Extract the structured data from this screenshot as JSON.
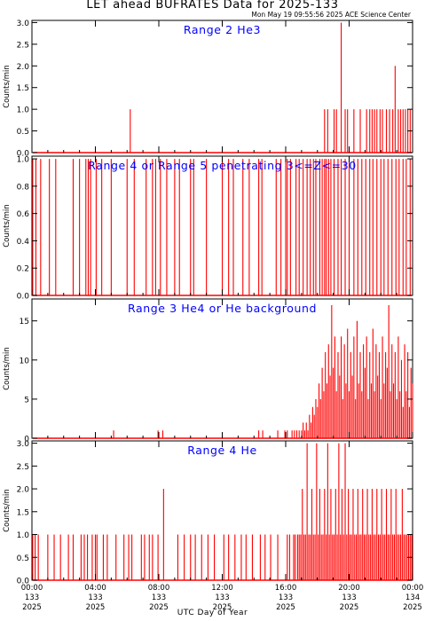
{
  "header": {
    "title": "LET ahead BUFRATES Data for 2025-133",
    "timestamp": "Mon May 19 09:55:56 2025 ACE Science Center"
  },
  "colors": {
    "data": "#ff0000",
    "panel_title": "#0000ff",
    "axis": "#000000"
  },
  "chart_data": [
    {
      "type": "line",
      "title": "Range 2 He3",
      "ylabel": "Counts/min",
      "ylim": [
        0,
        3.05
      ],
      "yticks": [
        "0.0",
        "0.5",
        "1.0",
        "1.5",
        "2.0",
        "2.5",
        "3.0"
      ],
      "yticks_values": [
        0,
        0.5,
        1,
        1.5,
        2,
        2.5,
        3
      ],
      "x_unit": "hours",
      "points": [
        [
          6.2,
          1
        ],
        [
          18.45,
          1
        ],
        [
          18.65,
          1
        ],
        [
          19.05,
          1
        ],
        [
          19.2,
          1
        ],
        [
          19.5,
          3
        ],
        [
          19.75,
          1
        ],
        [
          19.9,
          1
        ],
        [
          20.3,
          1
        ],
        [
          20.7,
          1
        ],
        [
          21.1,
          1
        ],
        [
          21.3,
          1
        ],
        [
          21.45,
          1
        ],
        [
          21.6,
          1
        ],
        [
          21.75,
          1
        ],
        [
          21.95,
          1
        ],
        [
          22.1,
          1
        ],
        [
          22.35,
          1
        ],
        [
          22.55,
          1
        ],
        [
          22.75,
          1
        ],
        [
          22.9,
          2
        ],
        [
          23.1,
          1
        ],
        [
          23.25,
          1
        ],
        [
          23.4,
          1
        ],
        [
          23.55,
          1
        ],
        [
          23.7,
          1
        ],
        [
          23.85,
          1
        ]
      ]
    },
    {
      "type": "line",
      "title": "Range 4 or Range 5 penetrating 3<=Z<=30",
      "ylabel": "Counts/min",
      "ylim": [
        0,
        1.02
      ],
      "yticks": [
        "0.0",
        "0.2",
        "0.4",
        "0.6",
        "0.8",
        "1.0"
      ],
      "yticks_values": [
        0,
        0.2,
        0.4,
        0.6,
        0.8,
        1.0
      ],
      "x_unit": "hours",
      "points": [
        [
          0.05,
          1
        ],
        [
          0.25,
          1
        ],
        [
          0.55,
          1
        ],
        [
          1.1,
          1
        ],
        [
          1.5,
          1
        ],
        [
          2.6,
          1
        ],
        [
          3.0,
          1
        ],
        [
          3.4,
          1
        ],
        [
          3.55,
          1
        ],
        [
          3.7,
          1
        ],
        [
          4.05,
          1
        ],
        [
          4.4,
          1
        ],
        [
          5.0,
          1
        ],
        [
          6.0,
          1
        ],
        [
          6.45,
          1
        ],
        [
          7.2,
          1
        ],
        [
          7.6,
          1
        ],
        [
          7.8,
          1
        ],
        [
          8.1,
          1
        ],
        [
          8.5,
          1
        ],
        [
          9.0,
          1
        ],
        [
          9.3,
          1
        ],
        [
          10.0,
          1
        ],
        [
          10.2,
          1
        ],
        [
          11.0,
          1
        ],
        [
          12.0,
          1
        ],
        [
          12.4,
          1
        ],
        [
          12.7,
          1
        ],
        [
          13.3,
          1
        ],
        [
          13.7,
          1
        ],
        [
          14.3,
          1
        ],
        [
          14.5,
          1
        ],
        [
          15.4,
          1
        ],
        [
          15.7,
          1
        ],
        [
          16.0,
          1
        ],
        [
          16.1,
          1
        ],
        [
          16.3,
          1
        ],
        [
          16.65,
          1
        ],
        [
          16.85,
          1
        ],
        [
          17.1,
          1
        ],
        [
          17.35,
          1
        ],
        [
          17.55,
          1
        ],
        [
          17.75,
          1
        ],
        [
          17.9,
          1
        ],
        [
          18.15,
          1
        ],
        [
          18.3,
          1
        ],
        [
          18.45,
          1
        ],
        [
          18.55,
          1
        ],
        [
          18.7,
          1
        ],
        [
          18.85,
          1
        ],
        [
          19.05,
          1
        ],
        [
          19.3,
          1
        ],
        [
          19.5,
          1
        ],
        [
          19.75,
          1
        ],
        [
          20.0,
          1
        ],
        [
          20.3,
          1
        ],
        [
          20.55,
          1
        ],
        [
          20.8,
          1
        ],
        [
          21.05,
          1
        ],
        [
          21.3,
          1
        ],
        [
          21.5,
          1
        ],
        [
          21.75,
          1
        ],
        [
          22.0,
          1
        ],
        [
          22.2,
          1
        ],
        [
          22.45,
          1
        ],
        [
          22.7,
          1
        ],
        [
          22.95,
          1
        ],
        [
          23.15,
          1
        ],
        [
          23.4,
          1
        ],
        [
          23.6,
          1
        ],
        [
          23.85,
          1
        ]
      ]
    },
    {
      "type": "line",
      "title": "Range 3 He4 or He background",
      "ylabel": "Counts/min",
      "ylim": [
        0,
        17.8
      ],
      "yticks": [
        "0",
        "5",
        "10",
        "15"
      ],
      "yticks_values": [
        0,
        5,
        10,
        15
      ],
      "x_unit": "hours",
      "points": [
        [
          5.15,
          1
        ],
        [
          7.95,
          1
        ],
        [
          8.25,
          1
        ],
        [
          14.3,
          1
        ],
        [
          14.55,
          1
        ],
        [
          15.5,
          1
        ],
        [
          15.95,
          1
        ],
        [
          16.1,
          1
        ],
        [
          16.4,
          1
        ],
        [
          16.55,
          1
        ],
        [
          16.7,
          1
        ],
        [
          16.85,
          1
        ],
        [
          17.0,
          1
        ],
        [
          17.1,
          2
        ],
        [
          17.2,
          1
        ],
        [
          17.3,
          2
        ],
        [
          17.4,
          1
        ],
        [
          17.5,
          3
        ],
        [
          17.6,
          2
        ],
        [
          17.7,
          4
        ],
        [
          17.8,
          3
        ],
        [
          17.9,
          5
        ],
        [
          18.0,
          4
        ],
        [
          18.1,
          7
        ],
        [
          18.2,
          5
        ],
        [
          18.3,
          9
        ],
        [
          18.4,
          6
        ],
        [
          18.5,
          11
        ],
        [
          18.6,
          7
        ],
        [
          18.7,
          12
        ],
        [
          18.8,
          8
        ],
        [
          18.9,
          17
        ],
        [
          19.0,
          9
        ],
        [
          19.1,
          13
        ],
        [
          19.2,
          6
        ],
        [
          19.3,
          11
        ],
        [
          19.4,
          8
        ],
        [
          19.5,
          13
        ],
        [
          19.6,
          5
        ],
        [
          19.7,
          12
        ],
        [
          19.8,
          7
        ],
        [
          19.9,
          14
        ],
        [
          20.0,
          6
        ],
        [
          20.1,
          11
        ],
        [
          20.2,
          8
        ],
        [
          20.3,
          13
        ],
        [
          20.4,
          5
        ],
        [
          20.5,
          15
        ],
        [
          20.6,
          7
        ],
        [
          20.7,
          11
        ],
        [
          20.8,
          6
        ],
        [
          20.9,
          12
        ],
        [
          21.0,
          9
        ],
        [
          21.1,
          13
        ],
        [
          21.2,
          5
        ],
        [
          21.3,
          11
        ],
        [
          21.4,
          7
        ],
        [
          21.5,
          14
        ],
        [
          21.6,
          6
        ],
        [
          21.7,
          12
        ],
        [
          21.8,
          8
        ],
        [
          21.9,
          11
        ],
        [
          22.0,
          5
        ],
        [
          22.1,
          13
        ],
        [
          22.2,
          7
        ],
        [
          22.3,
          11
        ],
        [
          22.4,
          9
        ],
        [
          22.5,
          17
        ],
        [
          22.6,
          6
        ],
        [
          22.7,
          12
        ],
        [
          22.8,
          7
        ],
        [
          22.9,
          11
        ],
        [
          23.0,
          5
        ],
        [
          23.1,
          13
        ],
        [
          23.2,
          6
        ],
        [
          23.3,
          10
        ],
        [
          23.4,
          4
        ],
        [
          23.5,
          12
        ],
        [
          23.6,
          6
        ],
        [
          23.7,
          11
        ],
        [
          23.8,
          4
        ],
        [
          23.9,
          9
        ],
        [
          24.0,
          7
        ]
      ]
    },
    {
      "type": "line",
      "title": "Range 4 He",
      "ylabel": "Counts/min",
      "ylim": [
        0,
        3.05
      ],
      "yticks": [
        "0.0",
        "0.5",
        "1.0",
        "1.5",
        "2.0",
        "2.5",
        "3.0"
      ],
      "yticks_values": [
        0,
        0.5,
        1,
        1.5,
        2,
        2.5,
        3
      ],
      "x_unit": "hours",
      "points": [
        [
          0.05,
          1
        ],
        [
          0.2,
          1
        ],
        [
          0.4,
          1
        ],
        [
          1.0,
          1
        ],
        [
          1.4,
          1
        ],
        [
          1.8,
          1
        ],
        [
          2.3,
          1
        ],
        [
          2.6,
          1
        ],
        [
          3.1,
          1
        ],
        [
          3.3,
          1
        ],
        [
          3.5,
          1
        ],
        [
          3.8,
          1
        ],
        [
          4.0,
          1
        ],
        [
          4.1,
          1
        ],
        [
          4.5,
          1
        ],
        [
          4.75,
          1
        ],
        [
          5.3,
          1
        ],
        [
          5.8,
          1
        ],
        [
          6.1,
          1
        ],
        [
          6.3,
          1
        ],
        [
          6.9,
          1
        ],
        [
          7.1,
          1
        ],
        [
          7.4,
          1
        ],
        [
          7.6,
          1
        ],
        [
          7.95,
          1
        ],
        [
          8.3,
          2
        ],
        [
          9.2,
          1
        ],
        [
          9.6,
          1
        ],
        [
          10.0,
          1
        ],
        [
          10.3,
          1
        ],
        [
          10.7,
          1
        ],
        [
          11.1,
          1
        ],
        [
          11.5,
          1
        ],
        [
          12.1,
          1
        ],
        [
          12.4,
          1
        ],
        [
          12.8,
          1
        ],
        [
          13.2,
          1
        ],
        [
          13.5,
          1
        ],
        [
          13.9,
          1
        ],
        [
          14.4,
          1
        ],
        [
          14.7,
          1
        ],
        [
          15.05,
          1
        ],
        [
          15.5,
          1
        ],
        [
          16.1,
          1
        ],
        [
          16.25,
          1
        ],
        [
          16.5,
          1
        ],
        [
          16.6,
          1
        ],
        [
          16.75,
          1
        ],
        [
          16.85,
          1
        ],
        [
          16.95,
          1
        ],
        [
          17.05,
          2
        ],
        [
          17.15,
          1
        ],
        [
          17.25,
          1
        ],
        [
          17.35,
          3
        ],
        [
          17.45,
          1
        ],
        [
          17.55,
          1
        ],
        [
          17.65,
          2
        ],
        [
          17.75,
          1
        ],
        [
          17.85,
          1
        ],
        [
          17.95,
          3
        ],
        [
          18.05,
          1
        ],
        [
          18.15,
          2
        ],
        [
          18.25,
          1
        ],
        [
          18.35,
          1
        ],
        [
          18.45,
          2
        ],
        [
          18.55,
          1
        ],
        [
          18.65,
          3
        ],
        [
          18.75,
          1
        ],
        [
          18.85,
          2
        ],
        [
          18.95,
          1
        ],
        [
          19.05,
          1
        ],
        [
          19.15,
          2
        ],
        [
          19.25,
          1
        ],
        [
          19.35,
          3
        ],
        [
          19.45,
          1
        ],
        [
          19.55,
          2
        ],
        [
          19.65,
          1
        ],
        [
          19.75,
          3
        ],
        [
          19.85,
          1
        ],
        [
          19.95,
          2
        ],
        [
          20.05,
          1
        ],
        [
          20.15,
          1
        ],
        [
          20.25,
          2
        ],
        [
          20.35,
          1
        ],
        [
          20.45,
          1
        ],
        [
          20.55,
          2
        ],
        [
          20.65,
          1
        ],
        [
          20.75,
          1
        ],
        [
          20.85,
          2
        ],
        [
          20.95,
          1
        ],
        [
          21.05,
          1
        ],
        [
          21.15,
          2
        ],
        [
          21.25,
          1
        ],
        [
          21.35,
          1
        ],
        [
          21.45,
          2
        ],
        [
          21.55,
          1
        ],
        [
          21.65,
          1
        ],
        [
          21.75,
          2
        ],
        [
          21.85,
          1
        ],
        [
          21.95,
          1
        ],
        [
          22.05,
          2
        ],
        [
          22.15,
          1
        ],
        [
          22.25,
          1
        ],
        [
          22.35,
          2
        ],
        [
          22.45,
          1
        ],
        [
          22.55,
          1
        ],
        [
          22.65,
          2
        ],
        [
          22.75,
          1
        ],
        [
          22.85,
          1
        ],
        [
          22.95,
          2
        ],
        [
          23.05,
          1
        ],
        [
          23.15,
          1
        ],
        [
          23.25,
          1
        ],
        [
          23.35,
          2
        ],
        [
          23.45,
          1
        ],
        [
          23.55,
          1
        ],
        [
          23.65,
          1
        ],
        [
          23.75,
          1
        ],
        [
          23.85,
          1
        ],
        [
          23.95,
          1
        ]
      ]
    }
  ],
  "x_axis": {
    "xlabel": "UTC Day of Year",
    "xlim_hours": [
      0,
      24
    ],
    "ticks": [
      {
        "h": 0,
        "time": "00:00",
        "doy": "133",
        "year": "2025"
      },
      {
        "h": 4,
        "time": "04:00",
        "doy": "133",
        "year": "2025"
      },
      {
        "h": 8,
        "time": "08:00",
        "doy": "133",
        "year": "2025"
      },
      {
        "h": 12,
        "time": "12:00",
        "doy": "133",
        "year": "2025"
      },
      {
        "h": 16,
        "time": "16:00",
        "doy": "133",
        "year": "2025"
      },
      {
        "h": 20,
        "time": "20:00",
        "doy": "133",
        "year": "2025"
      },
      {
        "h": 24,
        "time": "00:00",
        "doy": "134",
        "year": "2025"
      }
    ]
  }
}
